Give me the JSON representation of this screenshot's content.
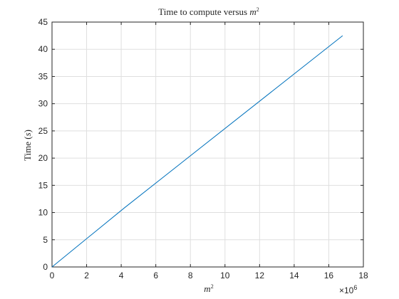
{
  "chart_data": {
    "type": "line",
    "title": "Time to compute versus m²",
    "title_prefix": "Time to compute versus ",
    "title_var": "m",
    "title_sup": "2",
    "xlabel_var": "m",
    "xlabel_sup": "2",
    "ylabel_prefix": "Time (",
    "ylabel_var": "s",
    "ylabel_suffix": ")",
    "x_exponent_base": "×10",
    "x_exponent_power": "6",
    "xlim": [
      0,
      18
    ],
    "ylim": [
      0,
      45
    ],
    "x_ticks": [
      0,
      2,
      4,
      6,
      8,
      10,
      12,
      14,
      16,
      18
    ],
    "y_ticks": [
      0,
      5,
      10,
      15,
      20,
      25,
      30,
      35,
      40,
      45
    ],
    "grid": true,
    "line_color": "#0072bd",
    "series": [
      {
        "x": [
          0,
          1.0,
          4.2,
          16.8
        ],
        "y": [
          0,
          2.6,
          10.9,
          42.5
        ]
      }
    ]
  }
}
